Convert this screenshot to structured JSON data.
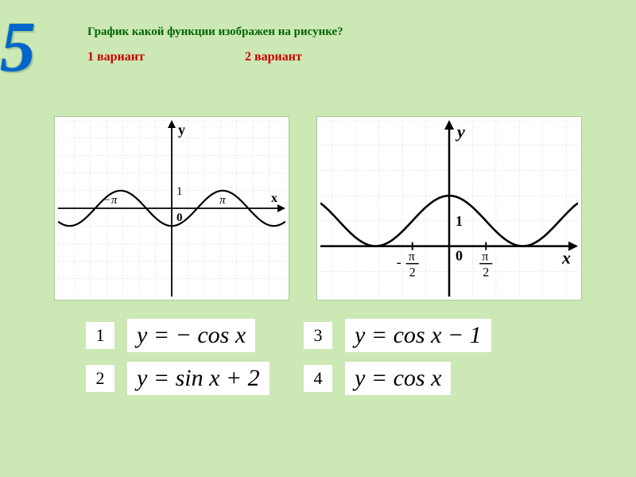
{
  "slide_number": "5",
  "question": "График какой функции изображен на рисунке?",
  "variants": {
    "v1": "1 вариант",
    "v2": "2 вариант"
  },
  "chart1": {
    "type": "line",
    "background_color": "#ffffff",
    "grid_color": "#bbbbbb",
    "axis_color": "#000000",
    "curve_color": "#000000",
    "curve_width": 2.2,
    "y_label": "у",
    "x_label": "х",
    "one_label": "1",
    "zero_label": "0",
    "tick_neg": "−π",
    "tick_pos": "π",
    "xlim": [
      -7,
      7
    ],
    "ylim": [
      -5,
      5
    ],
    "function": "y = -cos(x)",
    "sample_points_x": [
      -7,
      -6.5,
      -6,
      -5.5,
      -5,
      -4.5,
      -4,
      -3.5,
      -3,
      -2.5,
      -2,
      -1.5,
      -1,
      -0.5,
      0,
      0.5,
      1,
      1.5,
      2,
      2.5,
      3,
      3.5,
      4,
      4.5,
      5,
      5.5,
      6,
      6.5,
      7
    ],
    "grid_step": 1
  },
  "chart2": {
    "type": "line",
    "background_color": "#ffffff",
    "grid_color": "#bbbbbb",
    "axis_color": "#000000",
    "curve_color": "#000000",
    "curve_width": 2.6,
    "y_label": "y",
    "x_label": "x",
    "one_label": "1",
    "zero_label": "0",
    "tick_neg_top": "π",
    "tick_neg_bot": "2",
    "tick_pos_top": "π",
    "tick_pos_bot": "2",
    "xlim": [
      -5.5,
      5.5
    ],
    "ylim": [
      -2,
      5
    ],
    "function": "y = cos(x) + 1",
    "grid_step": 1
  },
  "answers": [
    {
      "num": "1",
      "formula_html": "y = − cos x"
    },
    {
      "num": "2",
      "formula_html": "y = sin x + 2"
    },
    {
      "num": "3",
      "formula_html": "y = cos x − 1"
    },
    {
      "num": "4",
      "formula_html": "y = cos x"
    }
  ]
}
